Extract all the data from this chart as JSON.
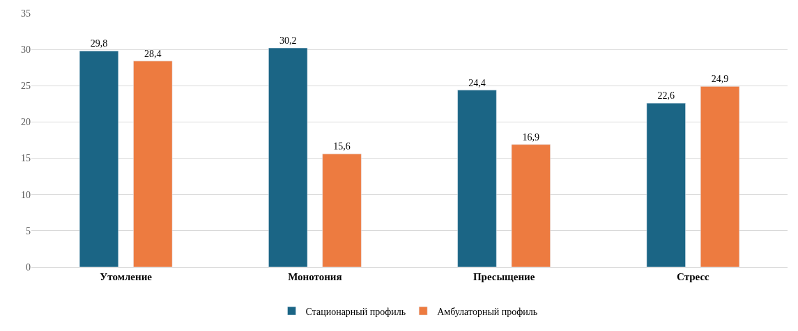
{
  "chart_data": {
    "type": "bar",
    "categories": [
      "Утомление",
      "Монотония",
      "Пресыщение",
      "Стресс"
    ],
    "series": [
      {
        "name": "Стационарный профиль",
        "color": "#1b6585",
        "values": [
          29.8,
          30.2,
          24.4,
          22.6
        ],
        "value_labels": [
          "29,8",
          "30,2",
          "24,4",
          "22,6"
        ]
      },
      {
        "name": "Амбулаторный профиль",
        "color": "#ed7b40",
        "values": [
          28.4,
          15.6,
          16.9,
          24.9
        ],
        "value_labels": [
          "28,4",
          "15,6",
          "16,9",
          "24,9"
        ]
      }
    ],
    "ylim": [
      0,
      35
    ],
    "yticks": [
      0,
      5,
      10,
      15,
      20,
      25,
      30,
      35
    ],
    "grid": "y",
    "legend": "bottom"
  }
}
